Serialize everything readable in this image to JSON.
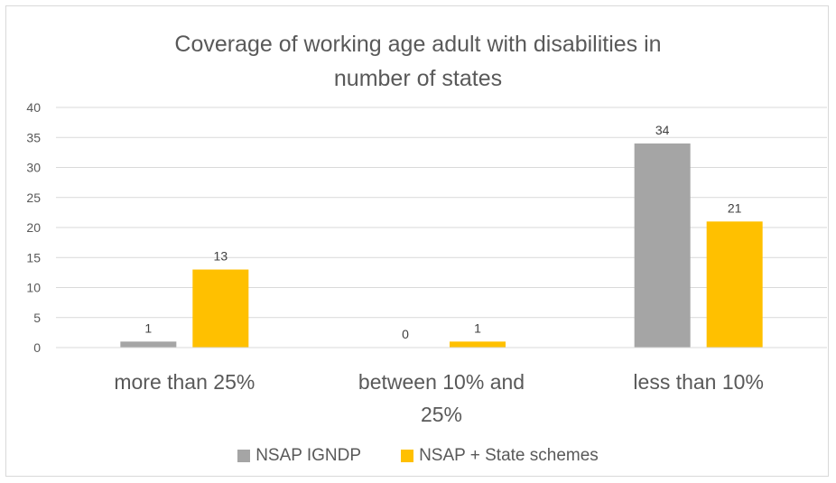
{
  "chart_data": {
    "type": "bar",
    "title": "Coverage of working age adult with disabilities in number of states",
    "title_lines": [
      "Coverage of working age adult with disabilities in",
      "number of states"
    ],
    "categories": [
      "more than 25%",
      "between 10% and 25%",
      "less than 10%"
    ],
    "category_lines": [
      [
        "more than 25%"
      ],
      [
        "between 10% and",
        "25%"
      ],
      [
        "less than 10%"
      ]
    ],
    "series": [
      {
        "name": "NSAP IGNDP",
        "values": [
          1,
          0,
          34
        ],
        "color": "#a5a5a5"
      },
      {
        "name": "NSAP + State schemes",
        "values": [
          13,
          1,
          21
        ],
        "color": "#ffc000"
      }
    ],
    "ylim": [
      0,
      40
    ],
    "yticks": [
      0,
      5,
      10,
      15,
      20,
      25,
      30,
      35,
      40
    ],
    "grid": true,
    "legend_position": "bottom",
    "data_labels": true,
    "xlabel": "",
    "ylabel": ""
  }
}
